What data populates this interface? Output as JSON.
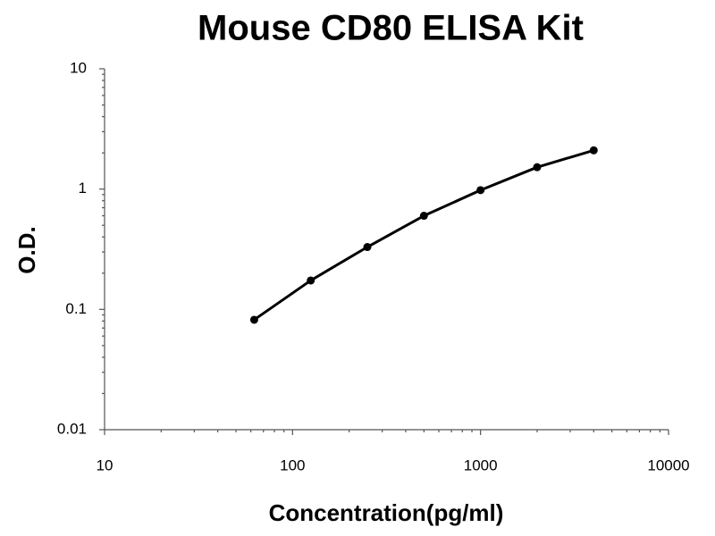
{
  "chart_data": {
    "type": "line",
    "title": "Mouse CD80 ELISA Kit",
    "x_label": "Concentration(pg/ml)",
    "y_label": "O.D.",
    "x": [
      62.5,
      125,
      250,
      500,
      1000,
      2000,
      4000
    ],
    "series": [
      {
        "color": "#000000",
        "values": [
          0.082,
          0.174,
          0.33,
          0.6,
          0.98,
          1.52,
          2.1
        ]
      }
    ],
    "xlim": [
      10,
      10000
    ],
    "xticks": [
      10,
      100,
      1000,
      10000
    ],
    "ylim": [
      0.01,
      10
    ],
    "yticks": [
      0.01,
      0.1,
      1,
      10
    ],
    "xscale": "log",
    "yscale": "log",
    "grid": false
  }
}
